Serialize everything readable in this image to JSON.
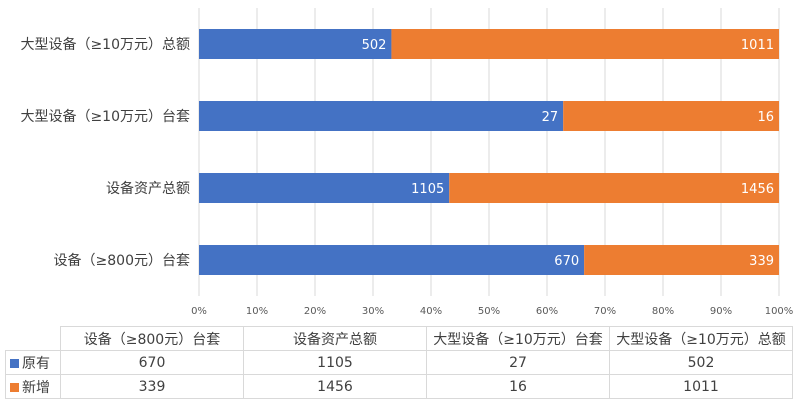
{
  "chart_data": {
    "type": "bar",
    "orientation": "horizontal",
    "stacked": "percent",
    "categories": [
      "大型设备（≥10万元）总额",
      "大型设备（≥10万元）台套",
      "设备资产总额",
      "设备（≥800元）台套"
    ],
    "series": [
      {
        "name": "原有",
        "color": "#4472C4",
        "values": [
          502,
          27,
          1105,
          670
        ]
      },
      {
        "name": "新增",
        "color": "#ED7D31",
        "values": [
          1011,
          16,
          1456,
          339
        ]
      }
    ],
    "x_ticks": [
      "0%",
      "10%",
      "20%",
      "30%",
      "40%",
      "50%",
      "60%",
      "70%",
      "80%",
      "90%",
      "100%"
    ],
    "xlim": [
      0,
      100
    ],
    "grid": true,
    "legend": "data-table"
  },
  "table": {
    "headers": [
      "设备（≥800元）台套",
      "设备资产总额",
      "大型设备（≥10万元）台套",
      "大型设备（≥10万元）总额"
    ],
    "rows": [
      {
        "label": "原有",
        "color": "#4472C4",
        "cells": [
          "670",
          "1105",
          "27",
          "502"
        ]
      },
      {
        "label": "新增",
        "color": "#ED7D31",
        "cells": [
          "339",
          "1456",
          "16",
          "1011"
        ]
      }
    ]
  }
}
